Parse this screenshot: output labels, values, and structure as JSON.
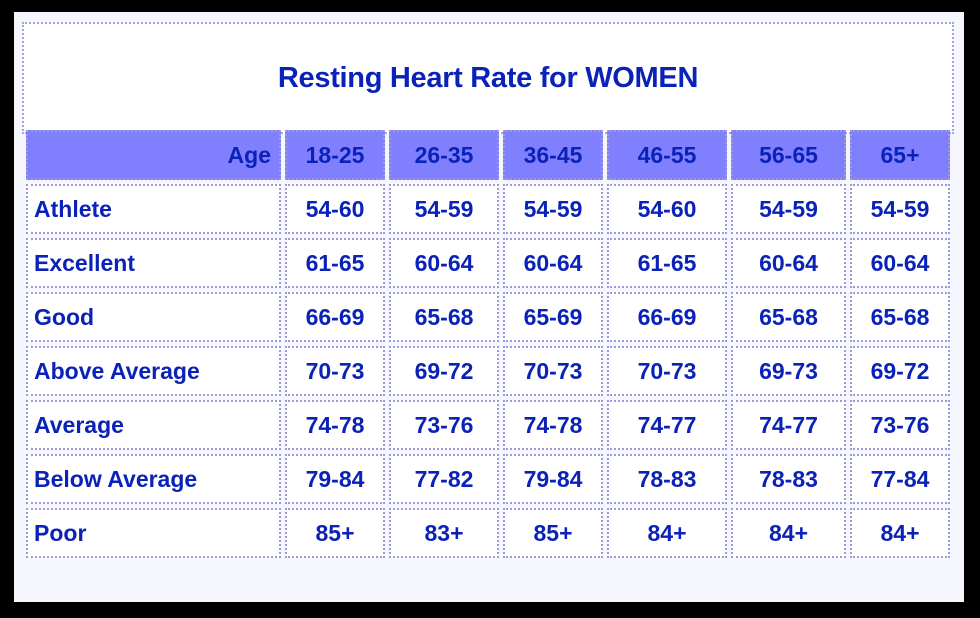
{
  "title": "Resting Heart Rate for WOMEN",
  "header": {
    "corner_label": "Age",
    "age_groups": [
      "18-25",
      "26-35",
      "36-45",
      "46-55",
      "56-65",
      "65+"
    ]
  },
  "rows": [
    {
      "label": "Athlete",
      "values": [
        "54-60",
        "54-59",
        "54-59",
        "54-60",
        "54-59",
        "54-59"
      ]
    },
    {
      "label": "Excellent",
      "values": [
        "61-65",
        "60-64",
        "60-64",
        "61-65",
        "60-64",
        "60-64"
      ]
    },
    {
      "label": "Good",
      "values": [
        "66-69",
        "65-68",
        "65-69",
        "66-69",
        "65-68",
        "65-68"
      ]
    },
    {
      "label": "Above Average",
      "values": [
        "70-73",
        "69-72",
        "70-73",
        "70-73",
        "69-73",
        "69-72"
      ]
    },
    {
      "label": "Average",
      "values": [
        "74-78",
        "73-76",
        "74-78",
        "74-77",
        "74-77",
        "73-76"
      ]
    },
    {
      "label": "Below Average",
      "values": [
        "79-84",
        "77-82",
        "79-84",
        "78-83",
        "78-83",
        "77-84"
      ]
    },
    {
      "label": "Poor",
      "values": [
        "85+",
        "83+",
        "85+",
        "84+",
        "84+",
        "84+"
      ]
    }
  ],
  "colors": {
    "text": "#0a22b8",
    "header_bg": "#8080ff",
    "cell_bg": "#ffffff",
    "border": "#9a9ad8",
    "outer_bg": "#000000"
  }
}
